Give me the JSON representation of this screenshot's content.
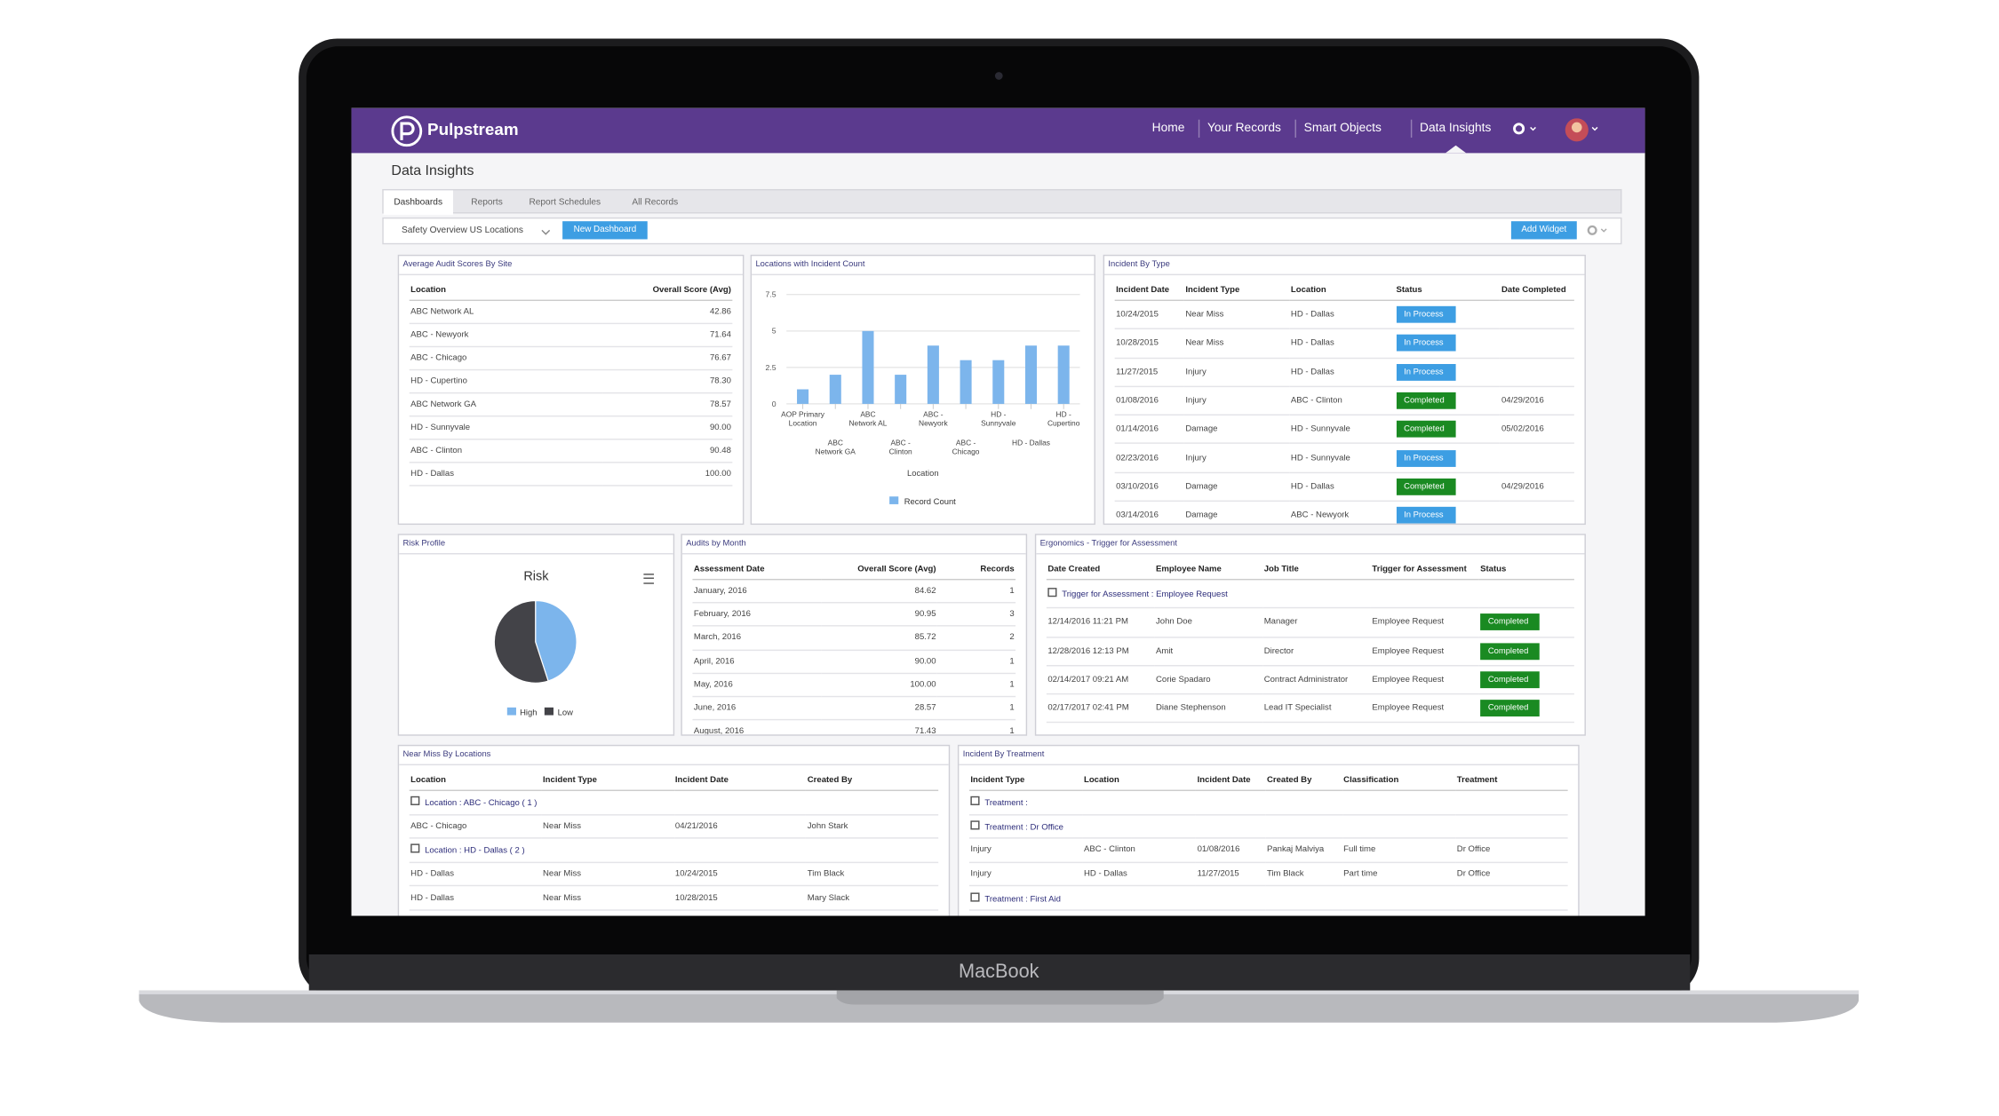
{
  "brand": "Pulpstream",
  "nav": [
    "Home",
    "Your Records",
    "Smart Objects",
    "Data Insights"
  ],
  "page_title": "Data Insights",
  "tabs": [
    "Dashboards",
    "Reports",
    "Report Schedules",
    "All Records"
  ],
  "dashboard_select": "Safety Overview US Locations",
  "buttons": {
    "new_dashboard": "New Dashboard",
    "add_widget": "Add Widget"
  },
  "laptop_label": "MacBook",
  "status_styles": {
    "In Process": "#3d9ee3",
    "Completed": "#1a8a22"
  },
  "widgets": [
    {
      "title": "Average Audit Scores By Site",
      "columns": [
        "Location",
        "Overall Score (Avg)"
      ],
      "rows": [
        [
          "ABC Network AL",
          "42.86"
        ],
        [
          "ABC - Newyork",
          "71.64"
        ],
        [
          "ABC - Chicago",
          "76.67"
        ],
        [
          "HD - Cupertino",
          "78.30"
        ],
        [
          "ABC Network GA",
          "78.57"
        ],
        [
          "HD - Sunnyvale",
          "90.00"
        ],
        [
          "ABC - Clinton",
          "90.48"
        ],
        [
          "HD - Dallas",
          "100.00"
        ]
      ]
    },
    {
      "title": "Locations with Incident Count",
      "chart_data": {
        "type": "bar",
        "x_label": "Location",
        "categories": [
          "AOP Primary Location",
          "ABC Network GA",
          "ABC Network AL",
          "ABC - Clinton",
          "ABC - Newyork",
          "ABC - Chicago",
          "HD - Sunnyvale",
          "HD - Dallas",
          "HD - Cupertino"
        ],
        "series": [
          {
            "name": "Record Count",
            "color": "#7cb5ec",
            "values": [
              1,
              2,
              5,
              2,
              4,
              3,
              3,
              4,
              4
            ]
          }
        ],
        "ylim": [
          0,
          7.5
        ],
        "yticks": [
          0,
          2.5,
          5,
          7.5
        ],
        "grid": true
      }
    },
    {
      "title": "Incident By Type",
      "columns": [
        "Incident Date",
        "Incident Type",
        "Location",
        "Status",
        "Date Completed"
      ],
      "rows": [
        [
          "10/24/2015",
          "Near Miss",
          "HD - Dallas",
          "In Process"
        ],
        [
          "10/28/2015",
          "Near Miss",
          "HD - Dallas",
          "In Process"
        ],
        [
          "11/27/2015",
          "Injury",
          "HD - Dallas",
          "In Process"
        ],
        [
          "01/08/2016",
          "Injury",
          "ABC - Clinton",
          "Completed",
          "04/29/2016"
        ],
        [
          "01/14/2016",
          "Damage",
          "HD - Sunnyvale",
          "Completed",
          "05/02/2016"
        ],
        [
          "02/23/2016",
          "Injury",
          "HD - Sunnyvale",
          "In Process"
        ],
        [
          "03/10/2016",
          "Damage",
          "HD - Dallas",
          "Completed",
          "04/29/2016"
        ],
        [
          "03/14/2016",
          "Damage",
          "ABC - Newyork",
          "In Process"
        ]
      ]
    },
    {
      "title": "Risk Profile",
      "chart_data": {
        "type": "pie",
        "title": "Risk",
        "categories": [
          "High",
          "Low"
        ],
        "values": [
          45,
          55
        ],
        "colors": [
          "#7cb5ec",
          "#434348"
        ]
      }
    },
    {
      "title": "Audits by Month",
      "columns": [
        "Assessment Date",
        "Overall Score (Avg)",
        "Records"
      ],
      "rows": [
        [
          "January, 2016",
          "84.62",
          "1"
        ],
        [
          "February, 2016",
          "90.95",
          "3"
        ],
        [
          "March, 2016",
          "85.72",
          "2"
        ],
        [
          "April, 2016",
          "90.00",
          "1"
        ],
        [
          "May, 2016",
          "100.00",
          "1"
        ],
        [
          "June, 2016",
          "28.57",
          "1"
        ],
        [
          "August, 2016",
          "71.43",
          "1"
        ]
      ]
    },
    {
      "title": "Ergonomics - Trigger for Assessment",
      "columns": [
        "Date Created",
        "Employee Name",
        "Job Title",
        "Trigger for Assessment",
        "Status"
      ],
      "groups": [
        {
          "label": "Trigger for Assessment : Employee Request",
          "rows": [
            [
              "12/14/2016 11:21 PM",
              "John Doe",
              "Manager",
              "Employee Request",
              "Completed"
            ],
            [
              "12/28/2016 12:13 PM",
              "Amit",
              "Director",
              "Employee Request",
              "Completed"
            ],
            [
              "02/14/2017 09:21 AM",
              "Corie Spadaro",
              "Contract Administrator",
              "Employee Request",
              "Completed"
            ],
            [
              "02/17/2017 02:41 PM",
              "Diane Stephenson",
              "Lead IT Specialist",
              "Employee Request",
              "Completed"
            ]
          ]
        }
      ]
    },
    {
      "title": "Near Miss By Locations",
      "columns": [
        "Location",
        "Incident Type",
        "Incident Date",
        "Created By"
      ],
      "groups": [
        {
          "label": "Location : ABC - Chicago ( 1 )",
          "rows": [
            [
              "ABC - Chicago",
              "Near Miss",
              "04/21/2016",
              "John Stark"
            ]
          ]
        },
        {
          "label": "Location : HD - Dallas ( 2 )",
          "rows": [
            [
              "HD - Dallas",
              "Near Miss",
              "10/24/2015",
              "Tim Black"
            ],
            [
              "HD - Dallas",
              "Near Miss",
              "10/28/2015",
              "Mary Slack"
            ]
          ]
        }
      ]
    },
    {
      "title": "Incident By Treatment",
      "columns": [
        "Incident Type",
        "Location",
        "Incident Date",
        "Created By",
        "Classification",
        "Treatment"
      ],
      "groups": [
        {
          "label": "Treatment :",
          "rows": []
        },
        {
          "label": "Treatment : Dr Office",
          "rows": [
            [
              "Injury",
              "ABC - Clinton",
              "01/08/2016",
              "Pankaj Malviya",
              "Full time",
              "Dr Office"
            ],
            [
              "Injury",
              "HD - Dallas",
              "11/27/2015",
              "Tim Black",
              "Part time",
              "Dr Office"
            ]
          ]
        },
        {
          "label": "Treatment : First Aid",
          "rows": []
        }
      ]
    }
  ]
}
